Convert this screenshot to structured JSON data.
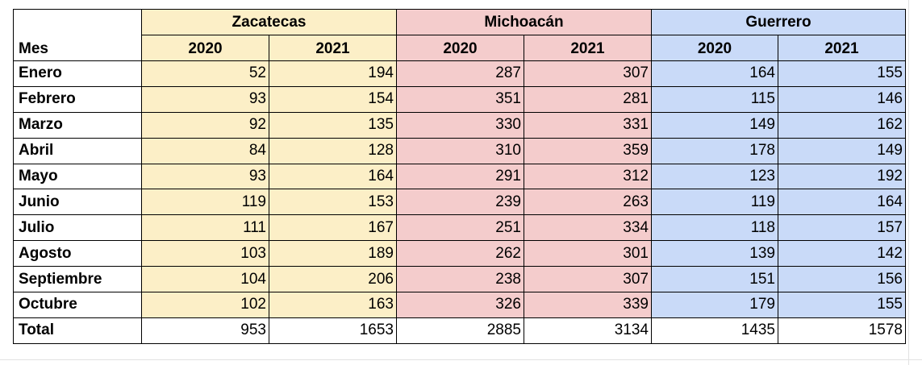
{
  "table": {
    "header_label": "Mes",
    "regions": [
      {
        "name": "Zacatecas",
        "color": "#fcefc7"
      },
      {
        "name": "Michoacán",
        "color": "#f4cccc"
      },
      {
        "name": "Guerrero",
        "color": "#c9daf8"
      }
    ],
    "years": [
      "2020",
      "2021",
      "2020",
      "2021",
      "2020",
      "2021"
    ],
    "rows": [
      {
        "mes": "Enero",
        "values": [
          "52",
          "194",
          "287",
          "307",
          "164",
          "155"
        ]
      },
      {
        "mes": "Febrero",
        "values": [
          "93",
          "154",
          "351",
          "281",
          "115",
          "146"
        ]
      },
      {
        "mes": "Marzo",
        "values": [
          "92",
          "135",
          "330",
          "331",
          "149",
          "162"
        ]
      },
      {
        "mes": "Abril",
        "values": [
          "84",
          "128",
          "310",
          "359",
          "178",
          "149"
        ]
      },
      {
        "mes": "Mayo",
        "values": [
          "93",
          "164",
          "291",
          "312",
          "123",
          "192"
        ]
      },
      {
        "mes": "Junio",
        "values": [
          "119",
          "153",
          "239",
          "263",
          "119",
          "164"
        ]
      },
      {
        "mes": "Julio",
        "values": [
          "111",
          "167",
          "251",
          "334",
          "118",
          "157"
        ]
      },
      {
        "mes": "Agosto",
        "values": [
          "103",
          "189",
          "262",
          "301",
          "139",
          "142"
        ]
      },
      {
        "mes": "Septiembre",
        "values": [
          "104",
          "206",
          "238",
          "307",
          "151",
          "156"
        ]
      },
      {
        "mes": "Octubre",
        "values": [
          "102",
          "163",
          "326",
          "339",
          "179",
          "155"
        ]
      }
    ],
    "total": {
      "label": "Total",
      "values": [
        "953",
        "1653",
        "2885",
        "3134",
        "1435",
        "1578"
      ]
    }
  }
}
